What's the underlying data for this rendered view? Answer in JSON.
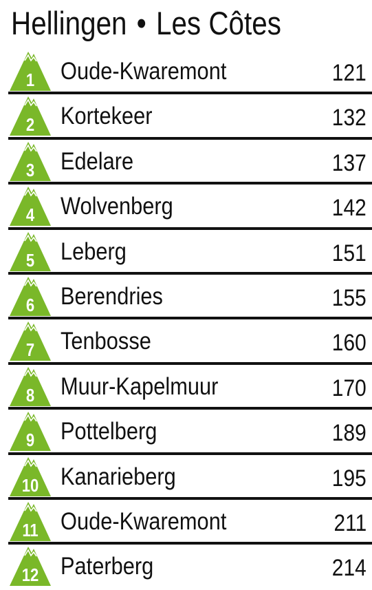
{
  "title": {
    "left": "Hellingen",
    "separator": "•",
    "right": "Les Côtes"
  },
  "badge_color": "#7ab829",
  "climbs": [
    {
      "number": "1",
      "name": "Oude-Kwaremont",
      "km": "121"
    },
    {
      "number": "2",
      "name": "Kortekeer",
      "km": "132"
    },
    {
      "number": "3",
      "name": "Edelare",
      "km": "137"
    },
    {
      "number": "4",
      "name": "Wolvenberg",
      "km": "142"
    },
    {
      "number": "5",
      "name": "Leberg",
      "km": "151"
    },
    {
      "number": "6",
      "name": "Berendries",
      "km": "155"
    },
    {
      "number": "7",
      "name": "Tenbosse",
      "km": "160"
    },
    {
      "number": "8",
      "name": "Muur-Kapelmuur",
      "km": "170"
    },
    {
      "number": "9",
      "name": "Pottelberg",
      "km": "189"
    },
    {
      "number": "10",
      "name": "Kanarieberg",
      "km": "195"
    },
    {
      "number": "11",
      "name": "Oude-Kwaremont",
      "km": "211"
    },
    {
      "number": "12",
      "name": "Paterberg",
      "km": "214"
    }
  ]
}
